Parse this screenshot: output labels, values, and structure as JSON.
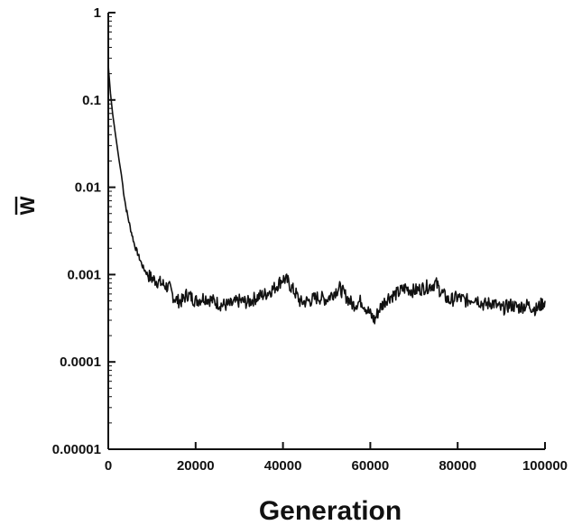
{
  "chart_data": {
    "type": "line",
    "title": "",
    "xlabel": "Generation",
    "ylabel": "W",
    "xlim": [
      0,
      100000
    ],
    "ylim": [
      1e-05,
      1
    ],
    "y_scale": "log",
    "grid": false,
    "x_ticks": [
      0,
      20000,
      40000,
      60000,
      80000,
      100000
    ],
    "x_tick_labels": [
      "0",
      "20000",
      "40000",
      "60000",
      "80000",
      "100000"
    ],
    "y_ticks": [
      1e-05,
      0.0001,
      0.001,
      0.01,
      0.1,
      1
    ],
    "y_tick_labels": [
      "0.00001",
      "0.0001",
      "0.001",
      "0.01",
      "0.1",
      "1"
    ],
    "series": [
      {
        "x": [
          0,
          500,
          1000,
          1500,
          2000,
          2500,
          3000,
          3500,
          4000,
          5000,
          6000,
          7000,
          8000,
          9000,
          10000,
          11000,
          12000,
          13000,
          14000,
          15000,
          16000,
          17000,
          18000,
          19000,
          20000,
          22000,
          24000,
          26000,
          28000,
          30000,
          32000,
          34000,
          36000,
          38000,
          40000,
          41000,
          42000,
          43000,
          44000,
          46000,
          48000,
          50000,
          52000,
          53000,
          54000,
          56000,
          58000,
          60000,
          61000,
          62000,
          64000,
          66000,
          68000,
          70000,
          72000,
          74000,
          75000,
          76000,
          78000,
          80000,
          82000,
          84000,
          86000,
          88000,
          90000,
          92000,
          94000,
          96000,
          98000,
          100000
        ],
        "y": [
          0.25,
          0.12,
          0.07,
          0.045,
          0.03,
          0.02,
          0.014,
          0.009,
          0.006,
          0.0035,
          0.0022,
          0.0016,
          0.0012,
          0.001,
          0.0009,
          0.00085,
          0.0008,
          0.00075,
          0.0007,
          0.00055,
          0.0005,
          0.0005,
          0.0006,
          0.00055,
          0.0005,
          0.00055,
          0.0005,
          0.00045,
          0.00045,
          0.0005,
          0.00048,
          0.00055,
          0.0006,
          0.0007,
          0.0009,
          0.00085,
          0.0007,
          0.0006,
          0.00048,
          0.0005,
          0.00055,
          0.00052,
          0.00065,
          0.0007,
          0.0006,
          0.00045,
          0.0005,
          0.00035,
          0.0003,
          0.0004,
          0.00055,
          0.0006,
          0.0007,
          0.00065,
          0.0007,
          0.00075,
          0.0008,
          0.00065,
          0.0005,
          0.00055,
          0.0005,
          0.00055,
          0.00045,
          0.00048,
          0.0004,
          0.00045,
          0.00042,
          0.00045,
          0.0004,
          0.0005
        ]
      }
    ]
  }
}
